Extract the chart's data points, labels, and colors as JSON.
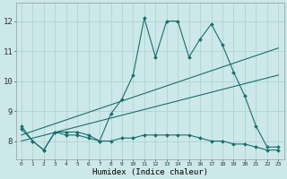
{
  "background_color": "#cce8e8",
  "grid_color": "#b0d4d4",
  "line_color": "#1a6e6e",
  "xlabel": "Humidex (Indice chaleur)",
  "ylabel_ticks": [
    8,
    9,
    10,
    11,
    12
  ],
  "xlim": [
    -0.5,
    23.5
  ],
  "ylim": [
    7.4,
    12.6
  ],
  "series": [
    {
      "x": [
        0,
        1,
        2,
        3,
        4,
        5,
        6,
        7,
        8,
        9,
        10,
        11,
        12,
        13,
        14,
        15,
        16,
        17,
        18,
        19,
        20,
        21,
        22,
        23
      ],
      "y": [
        8.5,
        8.0,
        7.7,
        8.3,
        8.3,
        8.3,
        8.2,
        8.0,
        8.9,
        9.4,
        10.2,
        12.1,
        10.8,
        12.0,
        12.0,
        10.8,
        11.4,
        11.9,
        11.2,
        10.3,
        9.5,
        8.5,
        7.8,
        7.8
      ],
      "marker": true
    },
    {
      "x": [
        0,
        1,
        2,
        3,
        4,
        5,
        6,
        7,
        8,
        9,
        10,
        11,
        12,
        13,
        14,
        15,
        16,
        17,
        18,
        19,
        20,
        21,
        22,
        23
      ],
      "y": [
        8.4,
        8.0,
        7.7,
        8.3,
        8.2,
        8.2,
        8.1,
        8.0,
        8.0,
        8.1,
        8.1,
        8.2,
        8.2,
        8.2,
        8.2,
        8.2,
        8.1,
        8.0,
        8.0,
        7.9,
        7.9,
        7.8,
        7.7,
        7.7
      ],
      "marker": true
    },
    {
      "x": [
        0,
        23
      ],
      "y": [
        8.2,
        11.1
      ],
      "marker": false
    },
    {
      "x": [
        0,
        23
      ],
      "y": [
        8.0,
        10.2
      ],
      "marker": false
    }
  ]
}
